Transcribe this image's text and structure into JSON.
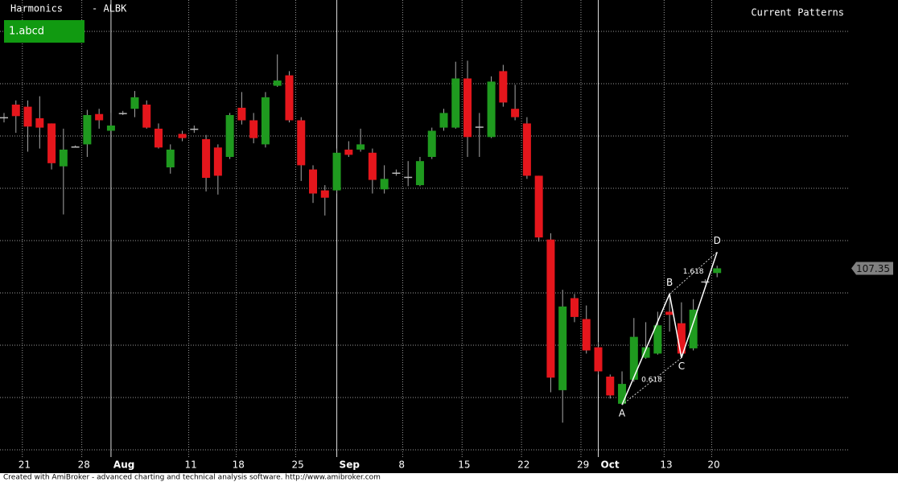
{
  "chart_data": {
    "type": "candlestick",
    "title": "Harmonics",
    "symbol": "- ALBK",
    "panel_title": "Current Patterns",
    "pattern_list": [
      "1.abcd"
    ],
    "last_price": 107.35,
    "up_color": "#1f9a1f",
    "down_color": "#e5161c",
    "grid": true,
    "ylim": [
      89.6,
      133
    ],
    "yticks": [
      90,
      95,
      100,
      105,
      110,
      115,
      120,
      125,
      130
    ],
    "categories": [
      null,
      "21",
      null,
      null,
      null,
      null,
      "28",
      null,
      null,
      "Aug",
      null,
      null,
      null,
      null,
      null,
      "11",
      null,
      null,
      null,
      "18",
      null,
      null,
      null,
      null,
      "25",
      null,
      null,
      null,
      "Sep",
      null,
      null,
      null,
      null,
      "8",
      null,
      null,
      null,
      null,
      "15",
      null,
      null,
      null,
      null,
      "22",
      null,
      null,
      null,
      null,
      "29",
      null,
      "Oct",
      null,
      null,
      null,
      null,
      "13",
      null,
      null,
      null,
      "20",
      null
    ],
    "open": [
      121.8,
      123.0,
      122.8,
      121.7,
      121.2,
      117.1,
      119.0,
      119.2,
      122.1,
      120.5,
      122.2,
      122.6,
      123.0,
      120.7,
      117.0,
      120.2,
      120.7,
      119.7,
      118.9,
      118.0,
      122.7,
      121.5,
      119.2,
      124.8,
      125.8,
      121.5,
      116.8,
      114.8,
      114.8,
      118.7,
      118.7,
      118.4,
      114.9,
      116.5,
      116.1,
      115.3,
      118.0,
      120.8,
      120.8,
      125.5,
      120.9,
      119.9,
      126.2,
      122.6,
      121.2,
      116.2,
      110.1,
      95.7,
      104.5,
      102.5,
      99.8,
      97.0,
      94.4,
      96.7,
      98.8,
      99.2,
      103.2,
      102.1,
      99.7,
      106.1,
      106.9
    ],
    "high": [
      122.2,
      123.4,
      123.4,
      123.8,
      121.2,
      120.7,
      119.1,
      122.5,
      122.6,
      122.2,
      122.4,
      124.3,
      123.4,
      121.2,
      119.2,
      120.5,
      121.0,
      120.1,
      119.2,
      122.2,
      124.2,
      122.2,
      124.2,
      127.8,
      126.2,
      121.8,
      117.2,
      115.3,
      118.8,
      119.5,
      120.7,
      118.8,
      117.2,
      116.8,
      117.6,
      118.0,
      120.8,
      122.6,
      127.1,
      127.2,
      122.2,
      125.7,
      126.8,
      124.9,
      121.8,
      116.2,
      110.7,
      105.3,
      104.9,
      103.8,
      100.3,
      97.2,
      97.5,
      102.6,
      102.2,
      103.2,
      104.9,
      104.1,
      104.4,
      106.3,
      107.6
    ],
    "low": [
      121.3,
      120.3,
      118.5,
      118.8,
      116.8,
      112.5,
      118.9,
      118.0,
      120.7,
      120.5,
      122.0,
      121.8,
      120.7,
      118.8,
      116.4,
      119.5,
      120.3,
      114.7,
      114.4,
      117.8,
      121.1,
      119.3,
      118.9,
      124.7,
      121.3,
      115.7,
      113.6,
      112.4,
      114.5,
      118.0,
      118.5,
      114.5,
      114.5,
      116.2,
      115.2,
      115.2,
      117.8,
      120.5,
      120.7,
      118.0,
      118.0,
      119.8,
      122.8,
      121.5,
      115.9,
      109.9,
      95.5,
      92.6,
      102.2,
      99.2,
      97.2,
      94.9,
      94.3,
      96.5,
      98.7,
      99.1,
      101.3,
      98.8,
      99.5,
      105.9,
      106.5
    ],
    "close": [
      121.8,
      121.9,
      120.9,
      120.8,
      117.4,
      118.7,
      119.0,
      122.0,
      121.5,
      121.0,
      122.2,
      123.7,
      120.8,
      118.9,
      118.7,
      119.8,
      120.7,
      116.0,
      116.2,
      122.0,
      121.5,
      119.8,
      123.7,
      125.3,
      121.5,
      117.2,
      114.5,
      114.1,
      118.4,
      118.2,
      119.2,
      115.8,
      115.9,
      116.5,
      116.1,
      117.6,
      120.5,
      122.2,
      125.5,
      119.9,
      120.9,
      125.2,
      123.2,
      121.8,
      116.2,
      110.3,
      96.9,
      103.7,
      102.7,
      99.5,
      97.5,
      95.2,
      96.3,
      100.8,
      99.8,
      101.9,
      102.9,
      99.2,
      103.4,
      106.1,
      107.35
    ],
    "pattern": {
      "points": [
        {
          "label": "A",
          "index": 52,
          "value": 94.3
        },
        {
          "label": "B",
          "index": 56,
          "value": 104.9
        },
        {
          "label": "C",
          "index": 57,
          "value": 98.8
        },
        {
          "label": "D",
          "index": 60,
          "value": 108.9
        }
      ],
      "ratios": [
        0.618,
        1.618
      ]
    }
  },
  "footer": "Created with AmiBroker - advanced charting and technical analysis software. http://www.amibroker.com"
}
